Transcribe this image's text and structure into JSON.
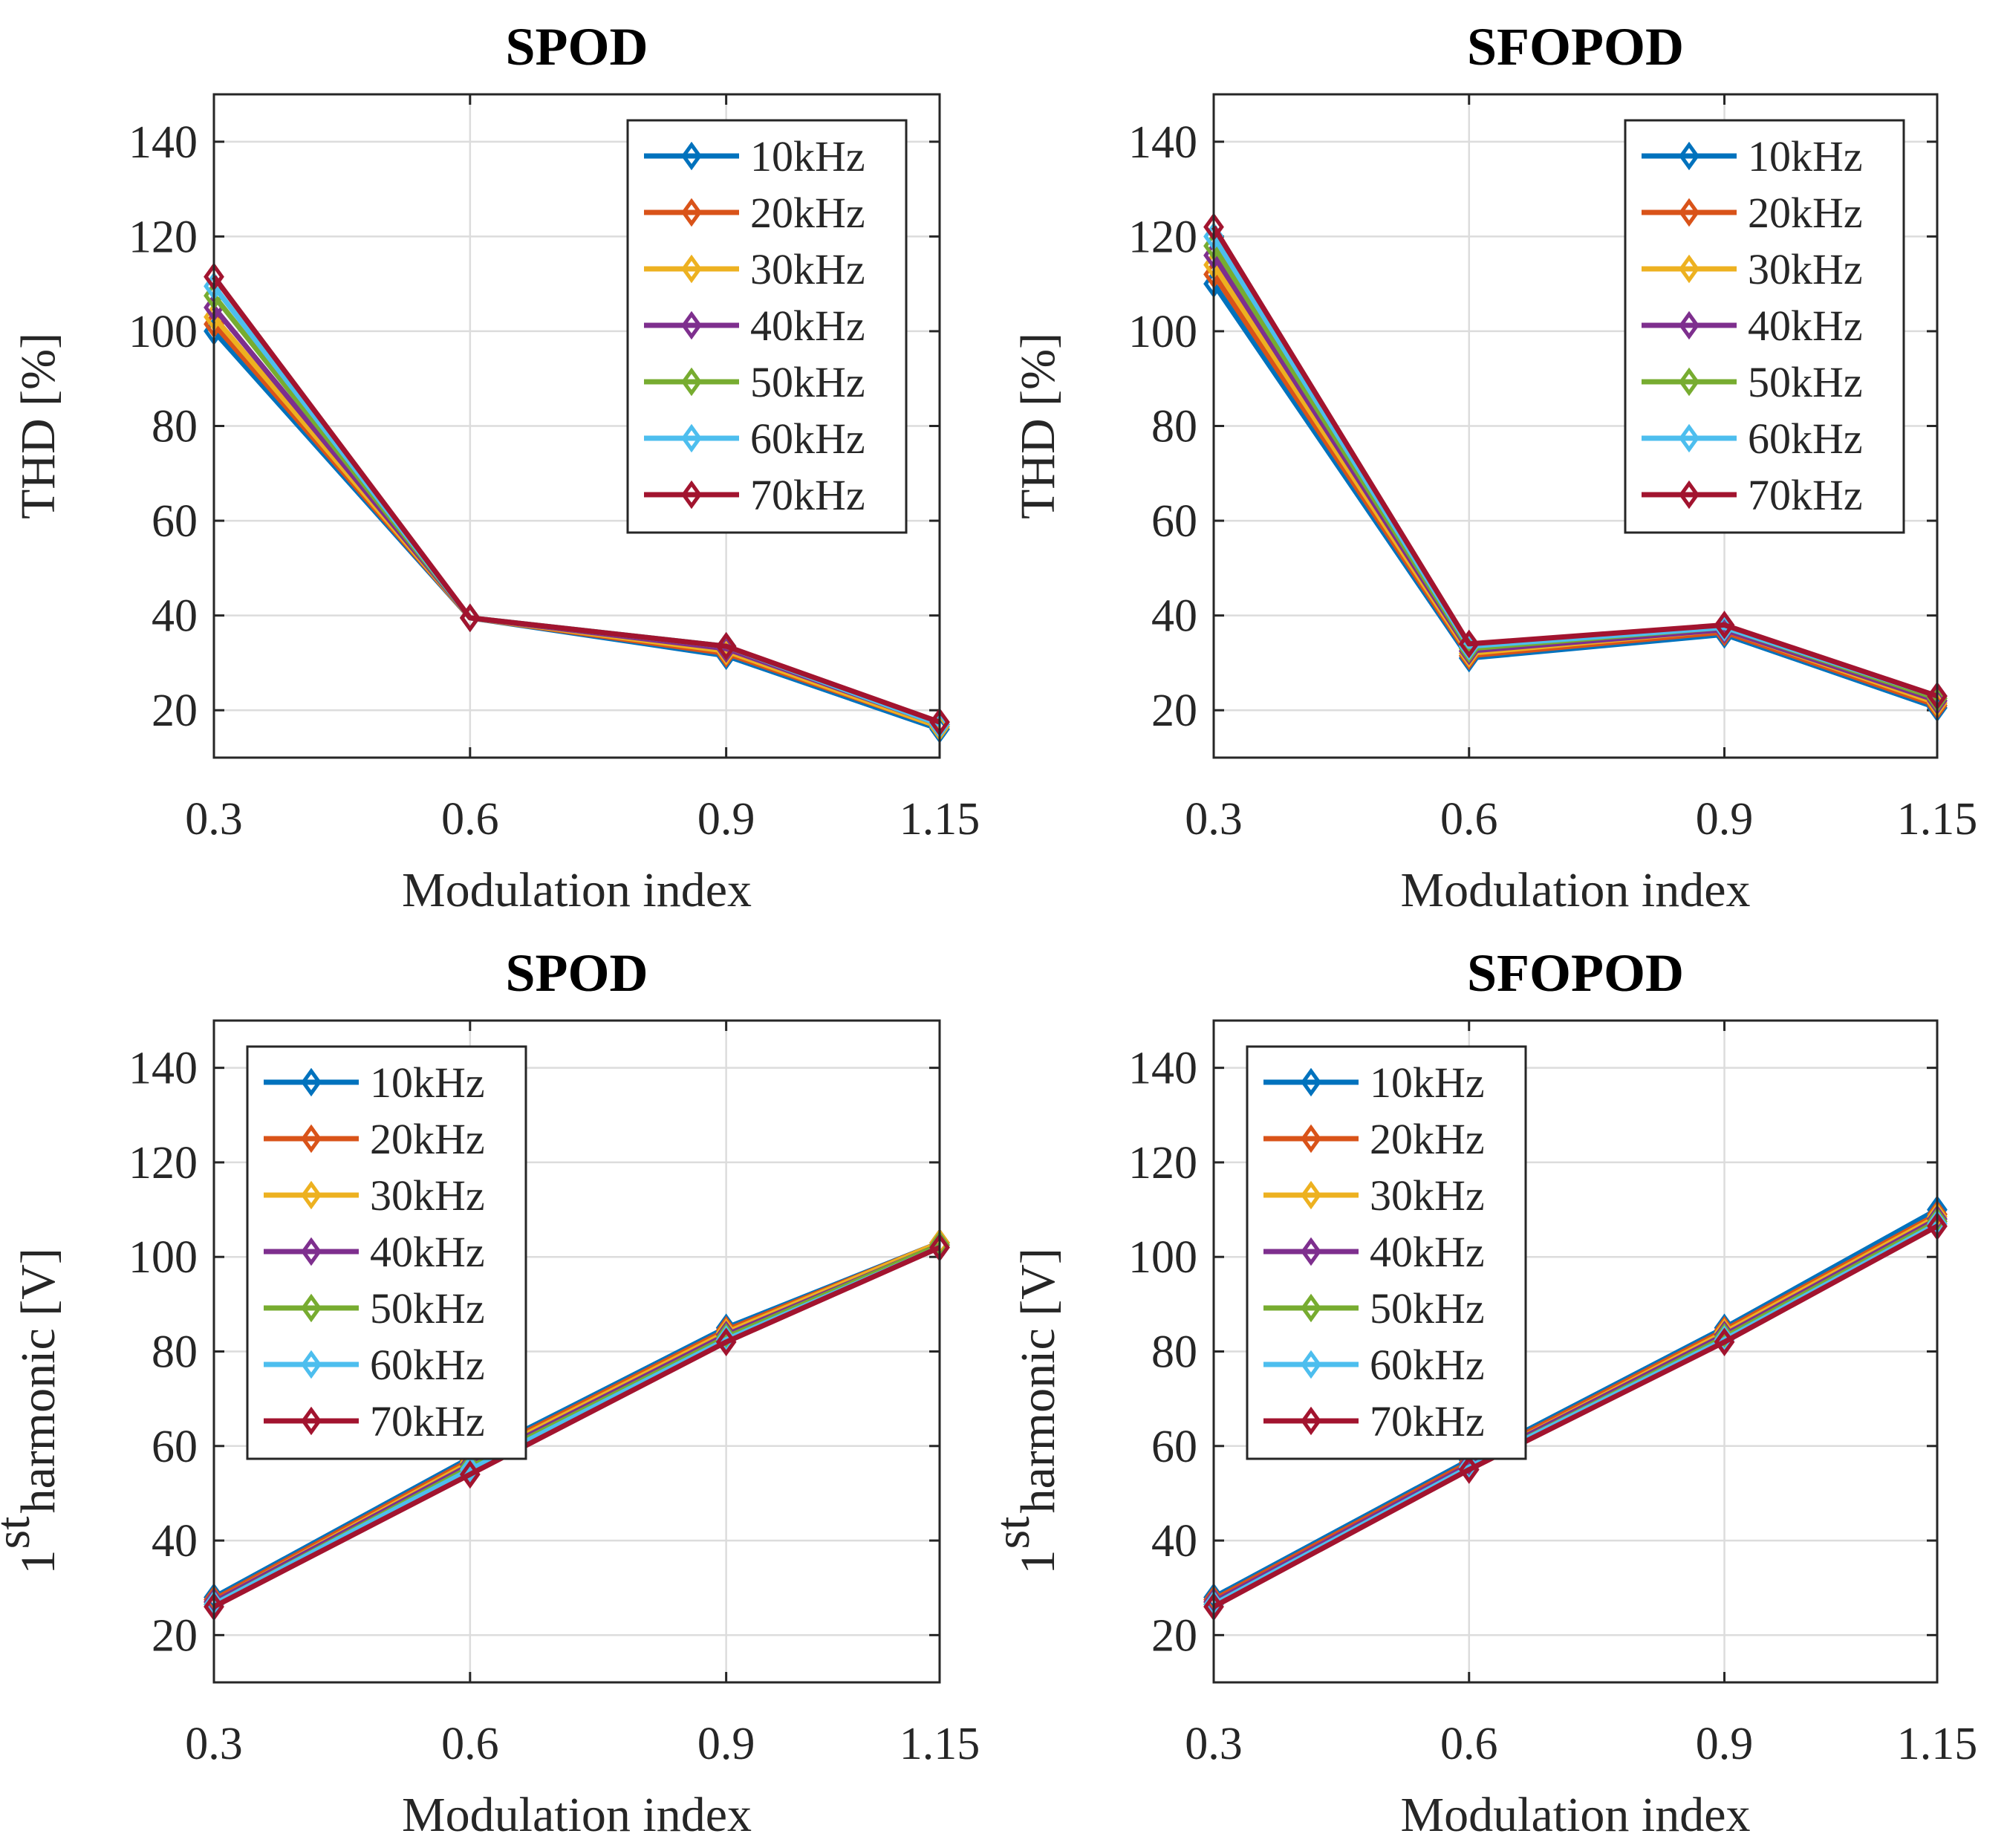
{
  "chart_data": [
    {
      "type": "line",
      "title": "SPOD",
      "xlabel": "Modulation index",
      "ylabel": "THD [%]",
      "ylabel_main": "",
      "ylabel_sup": "",
      "x": [
        0.3,
        0.6,
        0.9,
        1.15
      ],
      "x_tick_labels": [
        "0.3",
        "0.6",
        "0.9",
        "1.15"
      ],
      "xlim": [
        0.3,
        1.15
      ],
      "ylim": [
        10,
        150
      ],
      "y_ticks": [
        20,
        40,
        60,
        80,
        100,
        120,
        140
      ],
      "y_tick_labels": [
        "20",
        "40",
        "60",
        "80",
        "100",
        "120",
        "140"
      ],
      "grid": true,
      "legend_position": "top-right",
      "series": [
        {
          "name": "10kHz",
          "color": "#0072BD",
          "values": [
            100,
            39.5,
            31.5,
            16
          ]
        },
        {
          "name": "20kHz",
          "color": "#D95319",
          "values": [
            101.5,
            39.5,
            32,
            16.5
          ]
        },
        {
          "name": "30kHz",
          "color": "#EDB120",
          "values": [
            103,
            39.5,
            32.5,
            16.5
          ]
        },
        {
          "name": "40kHz",
          "color": "#7E2F8E",
          "values": [
            105,
            39.5,
            33,
            17
          ]
        },
        {
          "name": "50kHz",
          "color": "#77AC30",
          "values": [
            107.5,
            39.5,
            33.5,
            17
          ]
        },
        {
          "name": "60kHz",
          "color": "#4DBEEE",
          "values": [
            109.5,
            39.5,
            33.5,
            17
          ]
        },
        {
          "name": "70kHz",
          "color": "#A2142F",
          "values": [
            111.5,
            39.5,
            33.5,
            17.5
          ]
        }
      ]
    },
    {
      "type": "line",
      "title": "SFOPOD",
      "xlabel": "Modulation index",
      "ylabel": "THD [%]",
      "ylabel_main": "",
      "ylabel_sup": "",
      "x": [
        0.3,
        0.6,
        0.9,
        1.15
      ],
      "x_tick_labels": [
        "0.3",
        "0.6",
        "0.9",
        "1.15"
      ],
      "xlim": [
        0.3,
        1.15
      ],
      "ylim": [
        10,
        150
      ],
      "y_ticks": [
        20,
        40,
        60,
        80,
        100,
        120,
        140
      ],
      "y_tick_labels": [
        "20",
        "40",
        "60",
        "80",
        "100",
        "120",
        "140"
      ],
      "grid": true,
      "legend_position": "top-right",
      "series": [
        {
          "name": "10kHz",
          "color": "#0072BD",
          "values": [
            110,
            31,
            36,
            20.5
          ]
        },
        {
          "name": "20kHz",
          "color": "#D95319",
          "values": [
            112,
            31.5,
            36.5,
            21
          ]
        },
        {
          "name": "30kHz",
          "color": "#EDB120",
          "values": [
            114,
            32,
            37,
            21.5
          ]
        },
        {
          "name": "40kHz",
          "color": "#7E2F8E",
          "values": [
            116,
            32.5,
            37,
            22
          ]
        },
        {
          "name": "50kHz",
          "color": "#77AC30",
          "values": [
            118,
            33,
            37.5,
            22.5
          ]
        },
        {
          "name": "60kHz",
          "color": "#4DBEEE",
          "values": [
            120,
            33.5,
            37.5,
            23
          ]
        },
        {
          "name": "70kHz",
          "color": "#A2142F",
          "values": [
            122,
            34,
            38,
            23
          ]
        }
      ]
    },
    {
      "type": "line",
      "title": "SPOD",
      "xlabel": "Modulation index",
      "ylabel": "",
      "ylabel_main": "1",
      "ylabel_sup": "st",
      "ylabel_rest": "harmonic [V]",
      "x": [
        0.3,
        0.6,
        0.9,
        1.15
      ],
      "x_tick_labels": [
        "0.3",
        "0.6",
        "0.9",
        "1.15"
      ],
      "xlim": [
        0.3,
        1.15
      ],
      "ylim": [
        10,
        150
      ],
      "y_ticks": [
        20,
        40,
        60,
        80,
        100,
        120,
        140
      ],
      "y_tick_labels": [
        "20",
        "40",
        "60",
        "80",
        "100",
        "120",
        "140"
      ],
      "grid": true,
      "legend_position": "top-left",
      "series": [
        {
          "name": "10kHz",
          "color": "#0072BD",
          "values": [
            28,
            57.5,
            85,
            103
          ]
        },
        {
          "name": "20kHz",
          "color": "#D95319",
          "values": [
            27.5,
            57,
            84.5,
            103
          ]
        },
        {
          "name": "30kHz",
          "color": "#EDB120",
          "values": [
            27,
            56.5,
            84,
            103
          ]
        },
        {
          "name": "40kHz",
          "color": "#7E2F8E",
          "values": [
            27,
            56,
            83.5,
            102.5
          ]
        },
        {
          "name": "50kHz",
          "color": "#77AC30",
          "values": [
            26.5,
            55.5,
            83,
            102.5
          ]
        },
        {
          "name": "60kHz",
          "color": "#4DBEEE",
          "values": [
            26.5,
            55,
            82.5,
            102
          ]
        },
        {
          "name": "70kHz",
          "color": "#A2142F",
          "values": [
            26,
            54,
            82,
            102
          ]
        }
      ]
    },
    {
      "type": "line",
      "title": "SFOPOD",
      "xlabel": "Modulation index",
      "ylabel": "",
      "ylabel_main": "1",
      "ylabel_sup": "st",
      "ylabel_rest": "harmonic [V]",
      "x": [
        0.3,
        0.6,
        0.9,
        1.15
      ],
      "x_tick_labels": [
        "0.3",
        "0.6",
        "0.9",
        "1.15"
      ],
      "xlim": [
        0.3,
        1.15
      ],
      "ylim": [
        10,
        150
      ],
      "y_ticks": [
        20,
        40,
        60,
        80,
        100,
        120,
        140
      ],
      "y_tick_labels": [
        "20",
        "40",
        "60",
        "80",
        "100",
        "120",
        "140"
      ],
      "grid": true,
      "legend_position": "top-left",
      "series": [
        {
          "name": "10kHz",
          "color": "#0072BD",
          "values": [
            28,
            57,
            85,
            110
          ]
        },
        {
          "name": "20kHz",
          "color": "#D95319",
          "values": [
            27.5,
            56.5,
            84.5,
            109
          ]
        },
        {
          "name": "30kHz",
          "color": "#EDB120",
          "values": [
            27,
            56,
            84,
            108.5
          ]
        },
        {
          "name": "40kHz",
          "color": "#7E2F8E",
          "values": [
            27,
            56,
            83.5,
            108
          ]
        },
        {
          "name": "50kHz",
          "color": "#77AC30",
          "values": [
            26.5,
            55.5,
            83,
            107.5
          ]
        },
        {
          "name": "60kHz",
          "color": "#4DBEEE",
          "values": [
            26.5,
            55.5,
            82.5,
            107
          ]
        },
        {
          "name": "70kHz",
          "color": "#A2142F",
          "values": [
            26,
            55,
            82,
            106.5
          ]
        }
      ]
    }
  ]
}
